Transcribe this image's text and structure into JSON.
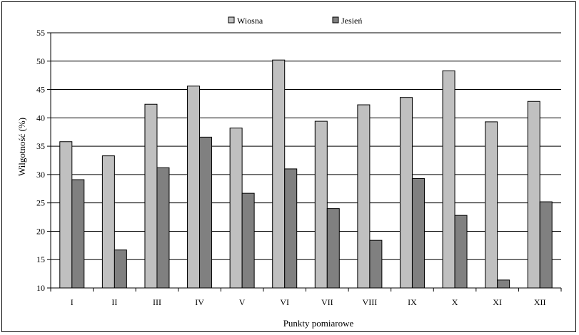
{
  "chart_data": {
    "type": "bar",
    "title": "",
    "xlabel": "Punkty pomiarowe",
    "ylabel": "Wilgotność (%)",
    "ylim": [
      10,
      55
    ],
    "yticks": [
      10,
      15,
      20,
      25,
      30,
      35,
      40,
      45,
      50,
      55
    ],
    "grid": true,
    "legend_position": "top-center",
    "categories": [
      "I",
      "II",
      "III",
      "IV",
      "V",
      "VI",
      "VII",
      "VIII",
      "IX",
      "X",
      "XI",
      "XII"
    ],
    "series": [
      {
        "name": "Wiosna",
        "color": "#c0c0c0",
        "values": [
          35.8,
          33.3,
          42.4,
          45.6,
          38.2,
          50.2,
          39.4,
          42.3,
          43.6,
          48.3,
          39.3,
          42.9
        ]
      },
      {
        "name": "Jesień",
        "color": "#808080",
        "values": [
          29.1,
          16.7,
          31.2,
          36.6,
          26.7,
          31.0,
          24.0,
          18.4,
          29.3,
          22.8,
          11.4,
          25.2
        ]
      }
    ]
  }
}
